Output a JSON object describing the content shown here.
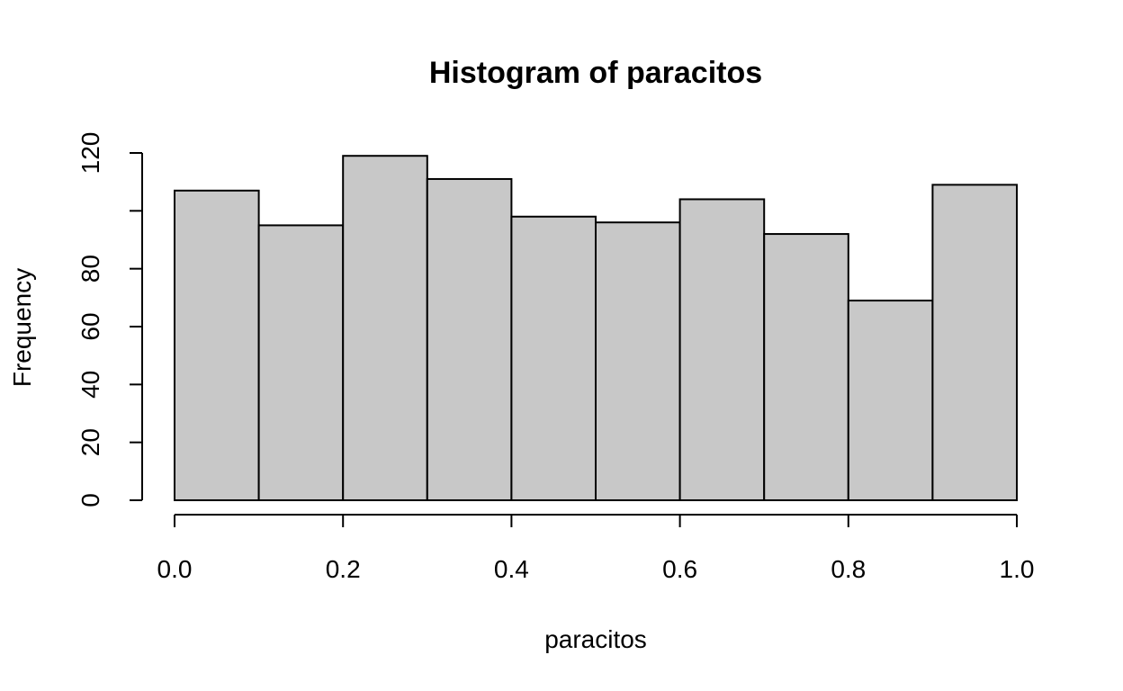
{
  "chart_data": {
    "type": "bar",
    "title": "Histogram of paracitos",
    "xlabel": "paracitos",
    "ylabel": "Frequency",
    "bin_edges": [
      0.0,
      0.1,
      0.2,
      0.3,
      0.4,
      0.5,
      0.6,
      0.7,
      0.8,
      0.9,
      1.0
    ],
    "values": [
      107,
      95,
      119,
      111,
      98,
      96,
      104,
      92,
      69,
      109
    ],
    "bar_color": "#c8c8c8",
    "xlim": [
      0.0,
      1.0
    ],
    "ylim": [
      0,
      120
    ],
    "x_ticks": [
      0.0,
      0.2,
      0.4,
      0.6,
      0.8,
      1.0
    ],
    "x_tick_labels": [
      "0.0",
      "0.2",
      "0.4",
      "0.6",
      "0.8",
      "1.0"
    ],
    "y_ticks": [
      0,
      20,
      40,
      60,
      80,
      100,
      120
    ],
    "y_tick_labels": [
      "0",
      "20",
      "40",
      "60",
      "80",
      "",
      "120"
    ],
    "grid": false
  }
}
